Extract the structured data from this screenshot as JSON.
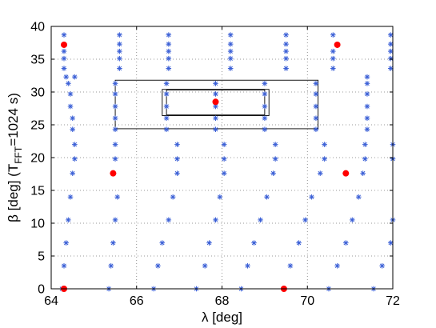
{
  "chart_data": {
    "type": "scatter",
    "xlabel": "λ [deg]",
    "ylabel": {
      "main": "β [deg]  (T",
      "sub": "FFT",
      "tail": "=1024 s)"
    },
    "xlim": [
      64,
      72
    ],
    "ylim": [
      0,
      40
    ],
    "xticks": [
      "64",
      "66",
      "68",
      "70",
      "72"
    ],
    "xtick_values": [
      64,
      66,
      68,
      70,
      72
    ],
    "yticks": [
      "0",
      "5",
      "10",
      "15",
      "20",
      "25",
      "30",
      "35",
      "40"
    ],
    "ytick_values": [
      0,
      5,
      10,
      15,
      20,
      25,
      30,
      35,
      40
    ],
    "grid": true,
    "colors": {
      "grid_points": "#3a5fd6",
      "injections": "#ff0000"
    },
    "series": [
      {
        "marker": "asterisk",
        "columns": [
          {
            "beta": 0,
            "lambda": [
              64.25,
              65.35,
              66.4,
              67.4,
              68.45,
              69.45,
              70.5,
              71.55
            ]
          },
          {
            "beta": 3.5,
            "lambda": [
              64.3,
              65.4,
              66.5,
              67.6,
              68.6,
              69.6,
              70.7,
              71.75
            ]
          },
          {
            "beta": 7.0,
            "lambda": [
              64.35,
              65.45,
              66.6,
              67.7,
              68.75,
              69.8,
              70.9,
              71.95
            ]
          },
          {
            "beta": 10.5,
            "lambda": [
              64.4,
              65.5,
              66.75,
              67.85,
              68.9,
              69.95,
              71.05,
              72.0
            ]
          },
          {
            "beta": 14.0,
            "lambda": [
              64.45,
              65.55,
              66.85,
              67.95,
              69.05,
              70.1,
              71.2
            ]
          },
          {
            "beta": 17.6,
            "lambda": [
              64.5,
              65.45,
              66.95,
              68.05,
              69.2,
              70.3,
              71.3
            ]
          },
          {
            "beta": 19.8,
            "lambda": [
              64.55,
              65.5,
              66.95,
              68.05,
              69.25,
              70.4,
              71.35,
              72.0
            ]
          },
          {
            "beta": 22.0,
            "lambda": [
              64.55,
              65.5,
              66.95,
              68.05,
              69.25,
              70.4,
              71.35,
              72.0
            ]
          },
          {
            "beta": 24.3,
            "lambda": [
              64.5,
              65.5,
              66.7,
              67.85,
              69.0,
              70.2,
              71.4
            ]
          },
          {
            "beta": 26.0,
            "lambda": [
              64.5,
              65.5,
              66.7,
              67.85,
              69.0,
              70.2,
              71.4
            ]
          },
          {
            "beta": 27.8,
            "lambda": [
              64.45,
              65.5,
              66.7,
              67.85,
              69.0,
              70.2,
              71.4
            ]
          },
          {
            "beta": 29.7,
            "lambda": [
              64.45,
              65.5,
              66.7,
              67.85,
              69.0,
              70.2,
              71.4
            ]
          },
          {
            "beta": 31.3,
            "lambda": [
              64.4,
              65.5,
              66.7,
              67.85,
              69.0,
              70.2,
              71.4
            ]
          },
          {
            "beta": 32.3,
            "lambda": [
              64.35,
              64.55,
              71.4
            ]
          },
          {
            "beta": 33.6,
            "lambda": [
              64.3,
              65.6,
              66.75,
              68.2,
              69.5,
              70.6,
              71.95
            ]
          },
          {
            "beta": 35.1,
            "lambda": [
              64.3,
              65.6,
              66.75,
              68.2,
              69.5,
              70.6,
              71.95
            ]
          },
          {
            "beta": 36.2,
            "lambda": [
              64.3,
              65.6,
              66.75,
              68.2,
              69.5,
              70.6,
              71.95
            ]
          },
          {
            "beta": 37.3,
            "lambda": [
              65.6,
              66.75,
              68.2,
              69.5,
              71.95
            ]
          },
          {
            "beta": 38.7,
            "lambda": [
              64.3,
              65.6,
              66.75,
              68.2,
              69.5,
              70.6,
              71.95
            ]
          }
        ]
      },
      {
        "marker": "dot",
        "points": [
          [
            64.3,
            0
          ],
          [
            69.45,
            0
          ],
          [
            65.45,
            17.6
          ],
          [
            70.9,
            17.6
          ],
          [
            67.85,
            28.5
          ],
          [
            64.3,
            37.2
          ],
          [
            70.7,
            37.2
          ]
        ]
      }
    ],
    "boxes": [
      {
        "x0": 65.5,
        "x1": 70.25,
        "y0": 24.4,
        "y1": 31.8
      },
      {
        "x0": 66.6,
        "x1": 69.1,
        "y0": 26.4,
        "y1": 30.4
      },
      {
        "x0": 66.7,
        "x1": 69.0,
        "y0": 26.5,
        "y1": 30.3
      }
    ]
  }
}
